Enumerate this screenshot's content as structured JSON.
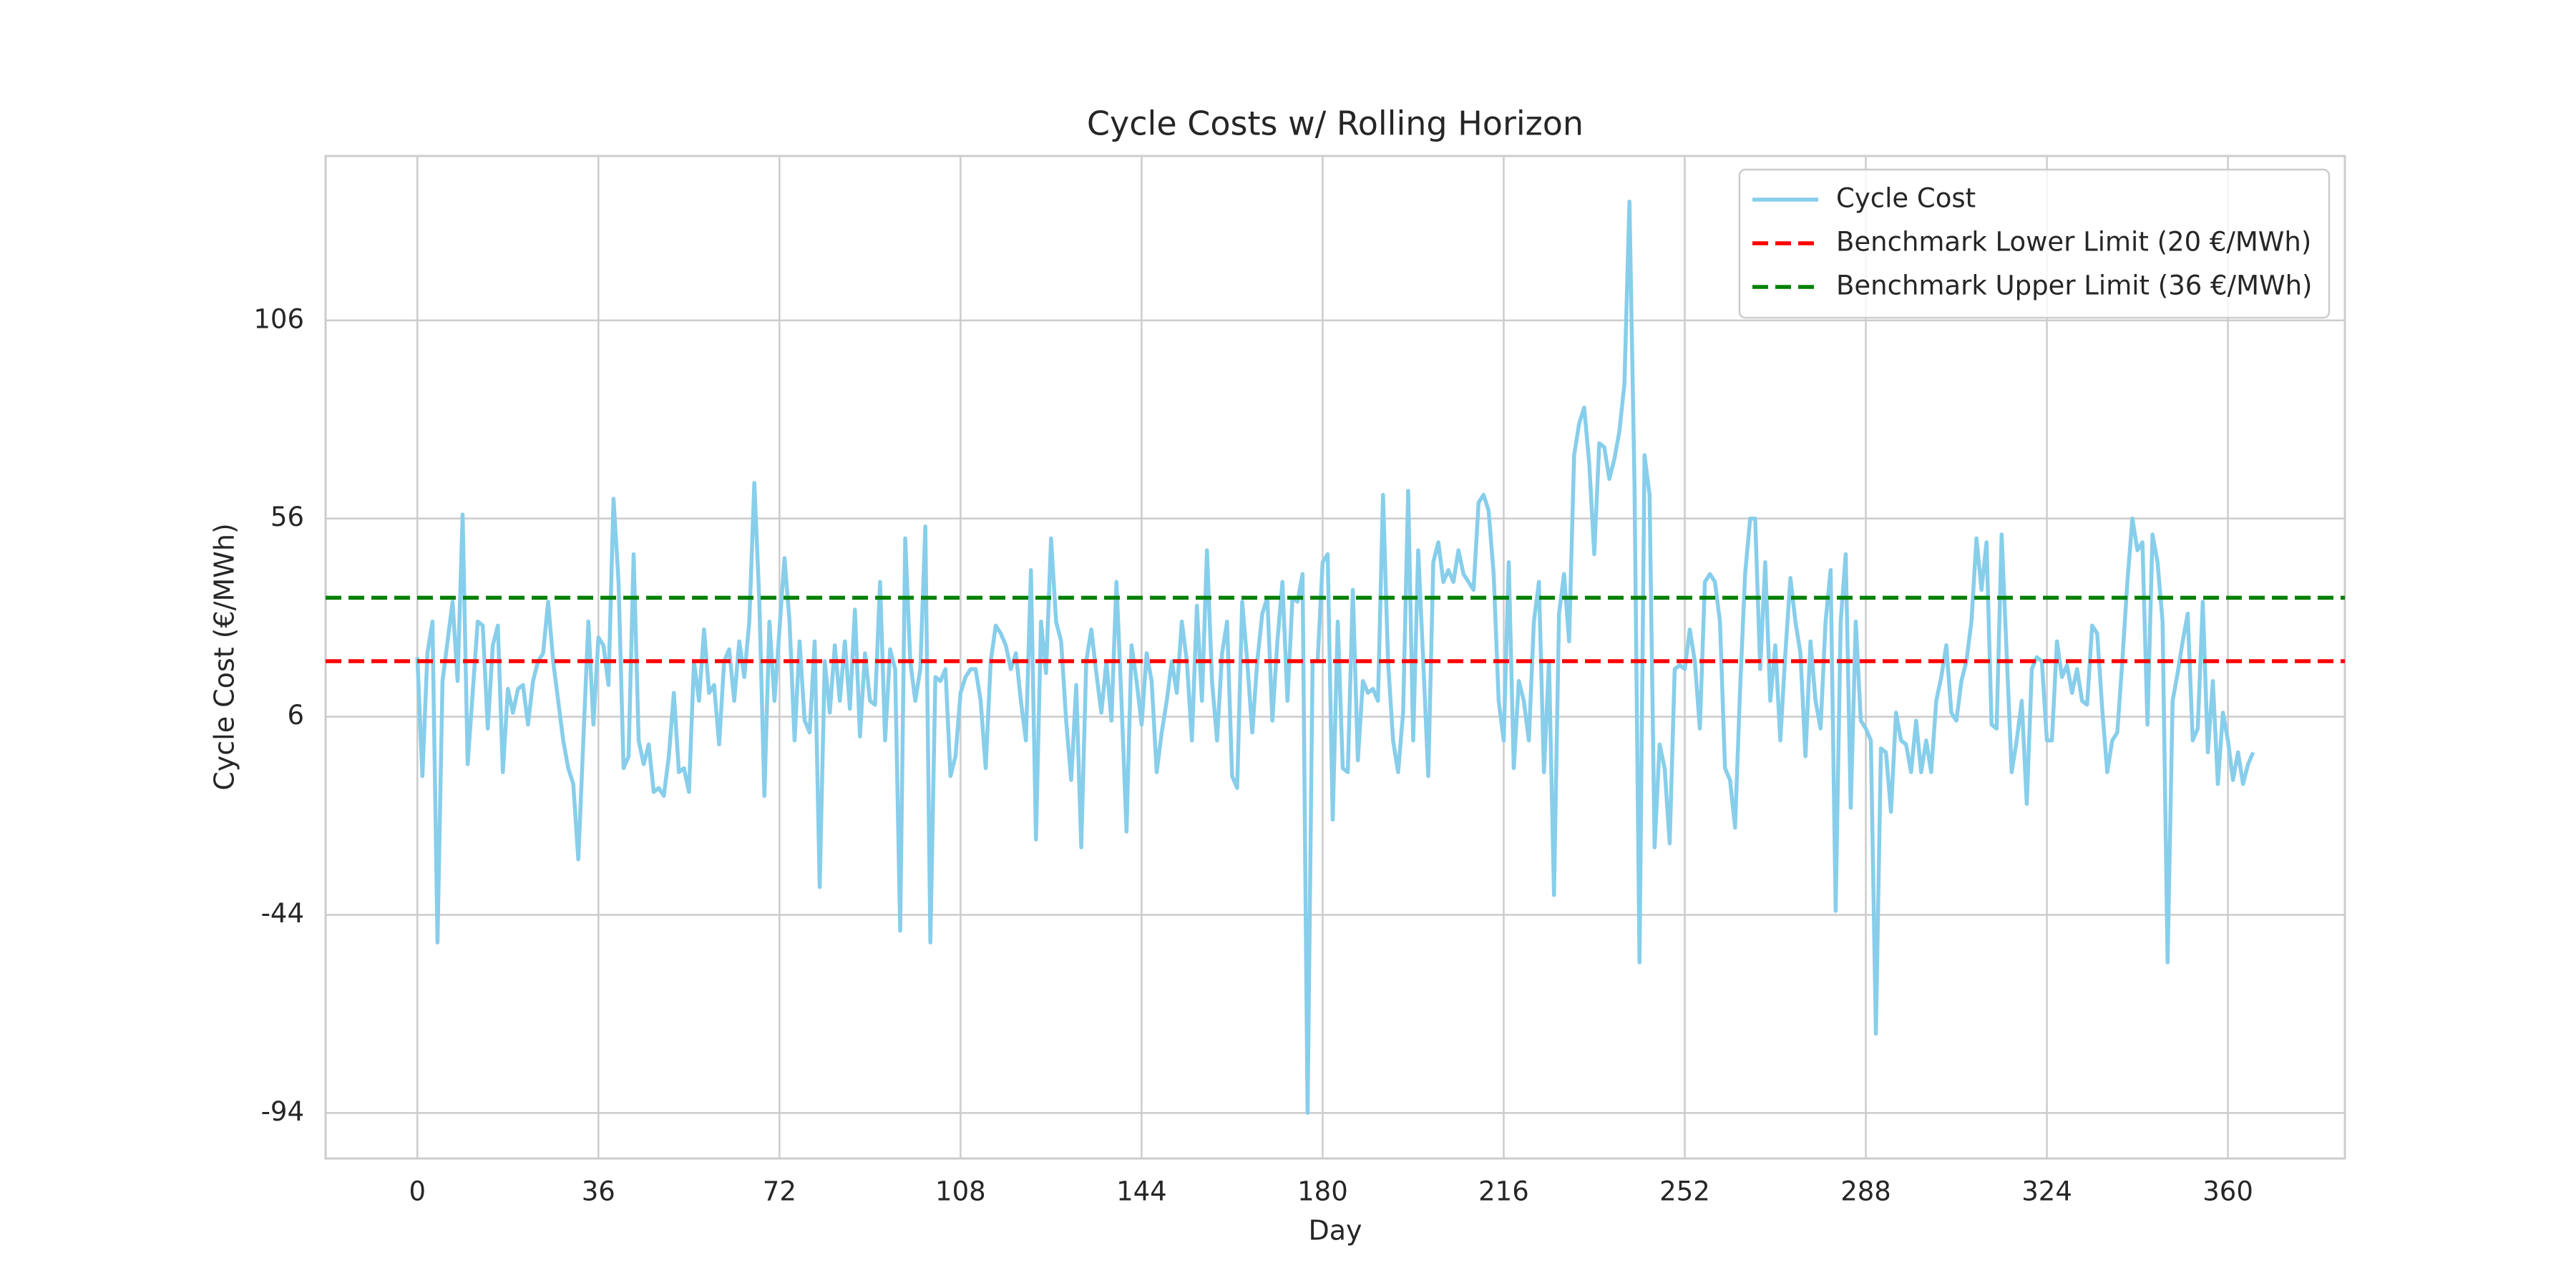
{
  "chart_data": {
    "type": "line",
    "title": "Cycle Costs w/ Rolling Horizon",
    "x_label": "Day",
    "y_label": "Cycle Cost (€/MWh)",
    "x": [
      0,
      1,
      2,
      3,
      4,
      5,
      6,
      7,
      8,
      9,
      10,
      11,
      12,
      13,
      14,
      15,
      16,
      17,
      18,
      19,
      20,
      21,
      22,
      23,
      24,
      25,
      26,
      27,
      28,
      29,
      30,
      31,
      32,
      33,
      34,
      35,
      36,
      37,
      38,
      39,
      40,
      41,
      42,
      43,
      44,
      45,
      46,
      47,
      48,
      49,
      50,
      51,
      52,
      53,
      54,
      55,
      56,
      57,
      58,
      59,
      60,
      61,
      62,
      63,
      64,
      65,
      66,
      67,
      68,
      69,
      70,
      71,
      72,
      73,
      74,
      75,
      76,
      77,
      78,
      79,
      80,
      81,
      82,
      83,
      84,
      85,
      86,
      87,
      88,
      89,
      90,
      91,
      92,
      93,
      94,
      95,
      96,
      97,
      98,
      99,
      100,
      101,
      102,
      103,
      104,
      105,
      106,
      107,
      108,
      109,
      110,
      111,
      112,
      113,
      114,
      115,
      116,
      117,
      118,
      119,
      120,
      121,
      122,
      123,
      124,
      125,
      126,
      127,
      128,
      129,
      130,
      131,
      132,
      133,
      134,
      135,
      136,
      137,
      138,
      139,
      140,
      141,
      142,
      143,
      144,
      145,
      146,
      147,
      148,
      149,
      150,
      151,
      152,
      153,
      154,
      155,
      156,
      157,
      158,
      159,
      160,
      161,
      162,
      163,
      164,
      165,
      166,
      167,
      168,
      169,
      170,
      171,
      172,
      173,
      174,
      175,
      176,
      177,
      178,
      179,
      180,
      181,
      182,
      183,
      184,
      185,
      186,
      187,
      188,
      189,
      190,
      191,
      192,
      193,
      194,
      195,
      196,
      197,
      198,
      199,
      200,
      201,
      202,
      203,
      204,
      205,
      206,
      207,
      208,
      209,
      210,
      211,
      212,
      213,
      214,
      215,
      216,
      217,
      218,
      219,
      220,
      221,
      222,
      223,
      224,
      225,
      226,
      227,
      228,
      229,
      230,
      231,
      232,
      233,
      234,
      235,
      236,
      237,
      238,
      239,
      240,
      241,
      242,
      243,
      244,
      245,
      246,
      247,
      248,
      249,
      250,
      251,
      252,
      253,
      254,
      255,
      256,
      257,
      258,
      259,
      260,
      261,
      262,
      263,
      264,
      265,
      266,
      267,
      268,
      269,
      270,
      271,
      272,
      273,
      274,
      275,
      276,
      277,
      278,
      279,
      280,
      281,
      282,
      283,
      284,
      285,
      286,
      287,
      288,
      289,
      290,
      291,
      292,
      293,
      294,
      295,
      296,
      297,
      298,
      299,
      300,
      301,
      302,
      303,
      304,
      305,
      306,
      307,
      308,
      309,
      310,
      311,
      312,
      313,
      314,
      315,
      316,
      317,
      318,
      319,
      320,
      321,
      322,
      323,
      324,
      325,
      326,
      327,
      328,
      329,
      330,
      331,
      332,
      333,
      334,
      335,
      336,
      337,
      338,
      339,
      340,
      341,
      342,
      343,
      344,
      345,
      346,
      347,
      348,
      349,
      350,
      351,
      352,
      353,
      354,
      355,
      356,
      357,
      358,
      359,
      360,
      361,
      362,
      363,
      364,
      365
    ],
    "series": [
      {
        "name": "Cycle Cost",
        "color": "#87ceeb",
        "values": [
          21,
          -9,
          22,
          30,
          -51,
          15,
          25,
          35,
          15,
          57,
          -6,
          12,
          30,
          29,
          3,
          24,
          29,
          -8,
          13,
          7,
          13,
          14,
          4,
          15,
          20,
          22,
          35,
          20,
          10,
          0,
          -7,
          -11,
          -30,
          0,
          30,
          4,
          26,
          24,
          14,
          61,
          40,
          -7,
          -4,
          47,
          0,
          -6,
          -1,
          -13,
          -12,
          -14,
          -4,
          12,
          -8,
          -7,
          -13,
          20,
          10,
          28,
          12,
          14,
          -1,
          20,
          23,
          10,
          25,
          16,
          30,
          65,
          35,
          -14,
          30,
          10,
          28,
          46,
          30,
          0,
          25,
          5,
          2,
          25,
          -37,
          20,
          7,
          24,
          10,
          25,
          8,
          33,
          1,
          22,
          10,
          9,
          40,
          0,
          23,
          18,
          -48,
          51,
          20,
          10,
          18,
          54,
          -51,
          16,
          15,
          18,
          -9,
          -4,
          12,
          16,
          18,
          18,
          10,
          -7,
          20,
          29,
          27,
          24,
          18,
          22,
          10,
          0,
          43,
          -25,
          30,
          17,
          51,
          30,
          25,
          5,
          -10,
          14,
          -27,
          20,
          28,
          17,
          7,
          20,
          5,
          40,
          10,
          -23,
          24,
          15,
          4,
          22,
          15,
          -8,
          2,
          10,
          20,
          12,
          30,
          20,
          0,
          34,
          10,
          48,
          15,
          0,
          22,
          30,
          -9,
          -12,
          35,
          20,
          2,
          20,
          32,
          36,
          5,
          25,
          40,
          10,
          36,
          35,
          42,
          -94,
          20,
          20,
          45,
          47,
          -20,
          30,
          -7,
          -8,
          38,
          -5,
          15,
          12,
          13,
          10,
          62,
          20,
          0,
          -8,
          7,
          63,
          0,
          48,
          20,
          -9,
          45,
          50,
          40,
          43,
          40,
          48,
          42,
          40,
          38,
          60,
          62,
          58,
          42,
          10,
          0,
          45,
          -7,
          15,
          10,
          0,
          30,
          40,
          -8,
          20,
          -39,
          32,
          42,
          25,
          72,
          80,
          84,
          70,
          47,
          75,
          74,
          66,
          71,
          78,
          90,
          136,
          65,
          -56,
          72,
          62,
          -27,
          -1,
          -7,
          -26,
          18,
          19,
          18,
          28,
          20,
          3,
          40,
          42,
          40,
          30,
          -7,
          -10,
          -22,
          13,
          42,
          56,
          56,
          18,
          45,
          10,
          24,
          0,
          22,
          41,
          30,
          22,
          -4,
          25,
          10,
          3,
          30,
          43,
          -43,
          30,
          47,
          -17,
          30,
          5,
          3,
          0,
          -74,
          -2,
          -3,
          -18,
          7,
          0,
          -1,
          -8,
          5,
          -8,
          0,
          -8,
          10,
          16,
          24,
          7,
          5,
          15,
          20,
          30,
          51,
          38,
          50,
          4,
          3,
          52,
          22,
          -8,
          0,
          10,
          -16,
          18,
          21,
          20,
          0,
          0,
          25,
          16,
          19,
          12,
          18,
          10,
          9,
          29,
          27,
          8,
          -8,
          0,
          2,
          20,
          40,
          56,
          48,
          50,
          4,
          52,
          45,
          30,
          -56,
          10,
          17,
          25,
          32,
          0,
          3,
          35,
          -3,
          15,
          -11,
          7,
          0,
          -10,
          -3,
          -11,
          -6,
          -3
        ]
      }
    ],
    "hlines": [
      {
        "name": "Benchmark Lower Limit (20 €/MWh)",
        "value": 20,
        "color": "red",
        "linestyle": "dashed"
      },
      {
        "name": "Benchmark Upper Limit (36 €/MWh)",
        "value": 36,
        "color": "green",
        "linestyle": "dashed"
      }
    ],
    "xlim": [
      -18.25,
      383.25
    ],
    "xticks": [
      0,
      36,
      72,
      108,
      144,
      180,
      216,
      252,
      288,
      324,
      360
    ],
    "ylim": [
      -105.5,
      147.5
    ],
    "yticks": [
      -94,
      -44,
      6,
      56,
      106
    ],
    "grid": true,
    "legend": "upper right"
  }
}
